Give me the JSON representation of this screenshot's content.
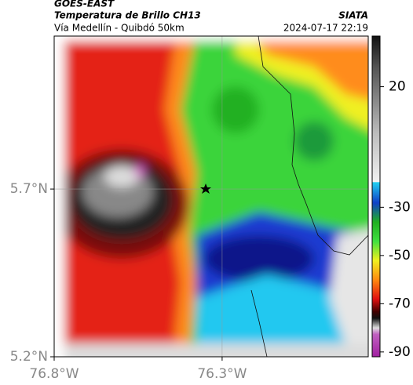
{
  "header": {
    "satellite": "GOES-EAST",
    "title": "Temperatura de Brillo CH13",
    "subtitle": "Vía Medellín - Quibdó 50km",
    "source": "SIATA",
    "datetime": "2024-07-17 22:19"
  },
  "map": {
    "lat_lim": [
      5.2,
      6.156
    ],
    "lon_lim": [
      -76.8,
      -75.865
    ],
    "lat_ticks": [
      {
        "value": 5.7,
        "label": "5.7°N"
      },
      {
        "value": 5.2,
        "label": "5.2°N"
      }
    ],
    "lon_ticks": [
      {
        "value": -76.8,
        "label": "76.8°W"
      },
      {
        "value": -76.3,
        "label": "76.3°W"
      }
    ]
  },
  "colorbar": {
    "lim": [
      -92,
      41
    ],
    "ticks": [
      20,
      -30,
      -50,
      -70,
      -90
    ]
  }
}
